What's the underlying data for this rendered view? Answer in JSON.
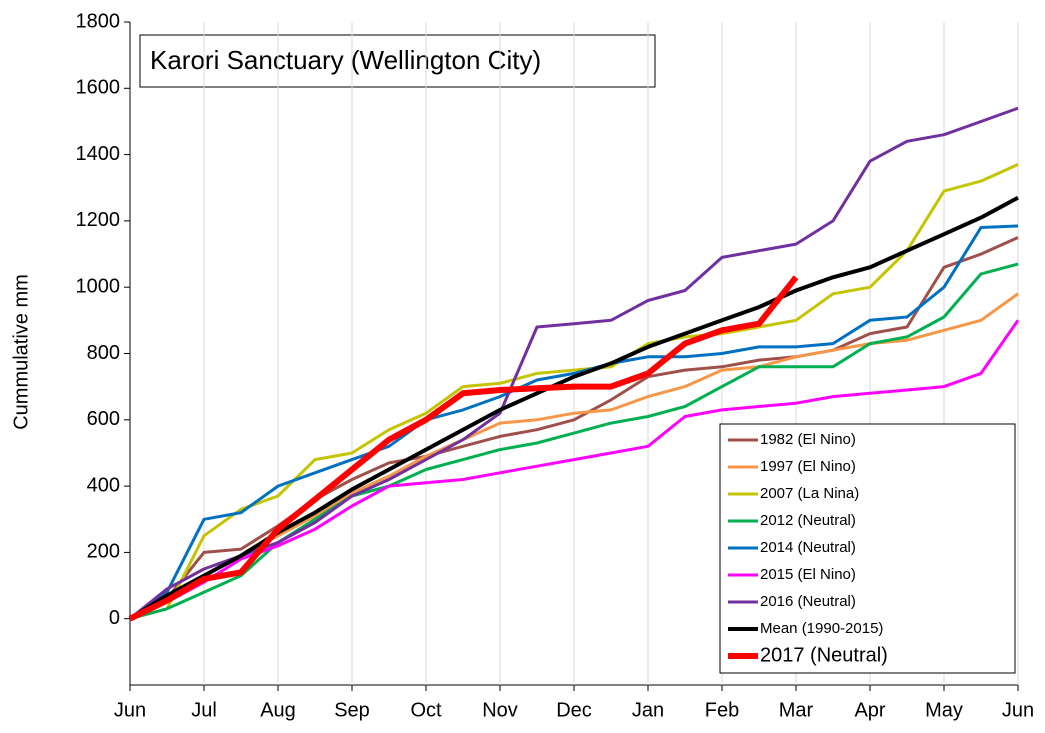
{
  "chart_data": {
    "type": "line",
    "title": "Karori Sanctuary (Wellington City)",
    "y_label": "Cummulative mm",
    "categories": [
      "Jun",
      null,
      "Jul",
      null,
      "Aug",
      null,
      "Sep",
      null,
      "Oct",
      null,
      "Nov",
      null,
      "Dec",
      null,
      "Jan",
      null,
      "Feb",
      null,
      "Mar",
      null,
      "Apr",
      null,
      "May",
      null,
      "Jun"
    ],
    "ylim": [
      -200,
      1800
    ],
    "yticks": [
      0,
      200,
      400,
      600,
      800,
      1000,
      1200,
      1400,
      1600,
      1800
    ],
    "grid": "x",
    "legend": "bottom-right",
    "series": [
      {
        "name": "1982 (El Nino)",
        "color": "#a0504a",
        "width": 3,
        "values": [
          0,
          60,
          200,
          210,
          280,
          360,
          420,
          470,
          490,
          520,
          550,
          570,
          600,
          660,
          730,
          750,
          760,
          780,
          790,
          810,
          860,
          880,
          1060,
          1100,
          1150
        ]
      },
      {
        "name": "1997 (El Nino)",
        "color": "#f79646",
        "width": 3,
        "values": [
          0,
          60,
          130,
          190,
          250,
          310,
          380,
          430,
          490,
          540,
          590,
          600,
          620,
          630,
          670,
          700,
          750,
          760,
          790,
          810,
          830,
          840,
          870,
          900,
          980
        ]
      },
      {
        "name": "2007 (La Nina)",
        "color": "#c4c400",
        "width": 3,
        "values": [
          0,
          30,
          250,
          330,
          370,
          480,
          500,
          570,
          620,
          700,
          710,
          740,
          750,
          760,
          830,
          850,
          860,
          880,
          900,
          980,
          1000,
          1110,
          1290,
          1320,
          1370
        ]
      },
      {
        "name": "2012 (Neutral)",
        "color": "#00b050",
        "width": 3,
        "values": [
          0,
          30,
          80,
          130,
          230,
          300,
          370,
          400,
          450,
          480,
          510,
          530,
          560,
          590,
          610,
          640,
          700,
          760,
          760,
          760,
          830,
          850,
          910,
          1040,
          1070
        ]
      },
      {
        "name": "2014 (Neutral)",
        "color": "#0070c0",
        "width": 3,
        "values": [
          0,
          80,
          300,
          320,
          400,
          440,
          480,
          520,
          600,
          630,
          670,
          720,
          740,
          770,
          790,
          790,
          800,
          820,
          820,
          830,
          900,
          910,
          1000,
          1180,
          1185
        ]
      },
      {
        "name": "2015 (El Nino)",
        "color": "#ff00ff",
        "width": 3,
        "values": [
          0,
          50,
          110,
          180,
          220,
          270,
          340,
          400,
          410,
          420,
          440,
          460,
          480,
          500,
          520,
          610,
          630,
          640,
          650,
          670,
          680,
          690,
          700,
          740,
          900
        ]
      },
      {
        "name": "2016 (Neutral)",
        "color": "#7030a0",
        "width": 3,
        "values": [
          0,
          90,
          150,
          190,
          230,
          290,
          370,
          420,
          480,
          540,
          620,
          880,
          890,
          900,
          960,
          990,
          1090,
          1110,
          1130,
          1200,
          1380,
          1440,
          1460,
          1500,
          1540
        ]
      },
      {
        "name": "Mean (1990-2015)",
        "color": "#000000",
        "width": 4,
        "values": [
          0,
          70,
          130,
          190,
          260,
          320,
          390,
          450,
          510,
          570,
          630,
          680,
          730,
          770,
          820,
          860,
          900,
          940,
          990,
          1030,
          1060,
          1110,
          1160,
          1210,
          1270
        ]
      },
      {
        "name": "2017 (Neutral)",
        "color": "#ff0000",
        "width": 6,
        "values": [
          0,
          55,
          120,
          140,
          270,
          360,
          450,
          540,
          600,
          680,
          690,
          695,
          700,
          700,
          740,
          830,
          870,
          890,
          1030,
          null,
          null,
          null,
          null,
          null,
          null
        ]
      }
    ]
  }
}
